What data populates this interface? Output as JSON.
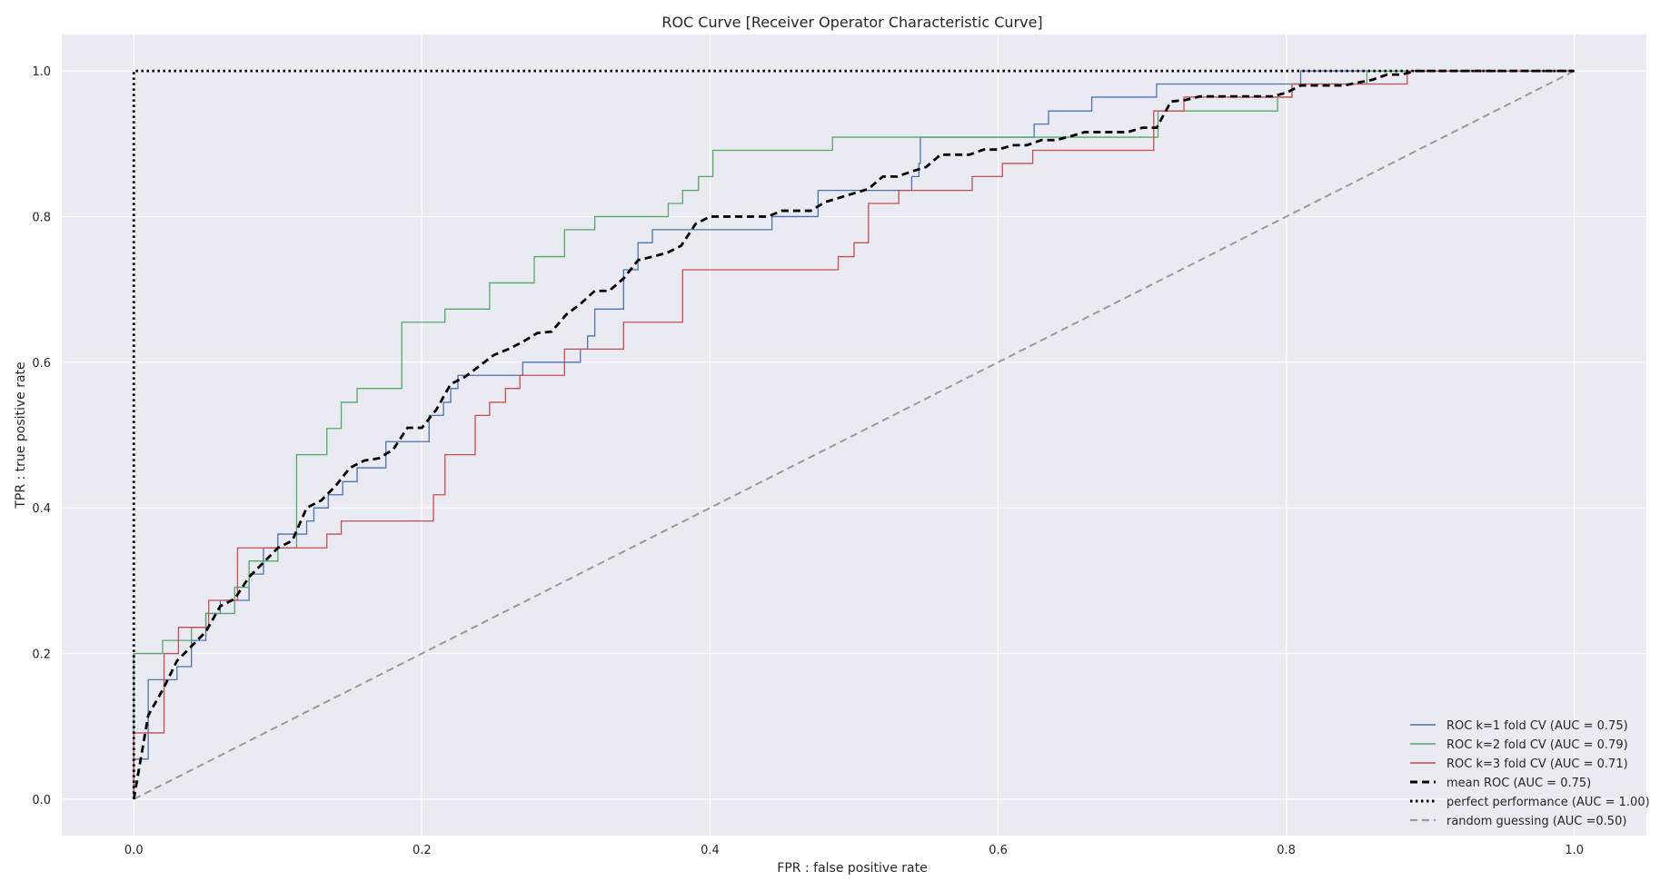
{
  "chart_data": {
    "type": "line",
    "title": "ROC Curve [Receiver Operator Characteristic Curve]",
    "xlabel": "FPR : false positive rate",
    "ylabel": "TPR : true positive rate",
    "xlim": [
      -0.05,
      1.05
    ],
    "ylim": [
      -0.05,
      1.05
    ],
    "xticks": [
      0.0,
      0.2,
      0.4,
      0.6,
      0.8,
      1.0
    ],
    "yticks": [
      0.0,
      0.2,
      0.4,
      0.6,
      0.8,
      1.0
    ],
    "xtick_labels": [
      "0.0",
      "0.2",
      "0.4",
      "0.6",
      "0.8",
      "1.0"
    ],
    "ytick_labels": [
      "0.0",
      "0.2",
      "0.4",
      "0.6",
      "0.8",
      "1.0"
    ],
    "grid": true,
    "legend_position": "lower-right",
    "colors": {
      "background": "#EAEAF2",
      "grid": "#FFFFFF",
      "fold1": "#4C72B0",
      "fold2": "#55A868",
      "fold3": "#C44E52",
      "mean": "#000000",
      "perfect": "#000000",
      "random": "#999999"
    },
    "series": [
      {
        "name": "ROC k=1 fold CV (AUC = 0.75)",
        "color": "#4C72B0",
        "style": "solid",
        "step": true,
        "points": [
          [
            0.0,
            0.0
          ],
          [
            0.0,
            0.055
          ],
          [
            0.01,
            0.055
          ],
          [
            0.01,
            0.164
          ],
          [
            0.03,
            0.164
          ],
          [
            0.03,
            0.182
          ],
          [
            0.04,
            0.182
          ],
          [
            0.04,
            0.218
          ],
          [
            0.05,
            0.218
          ],
          [
            0.05,
            0.255
          ],
          [
            0.06,
            0.255
          ],
          [
            0.06,
            0.273
          ],
          [
            0.08,
            0.273
          ],
          [
            0.08,
            0.309
          ],
          [
            0.09,
            0.309
          ],
          [
            0.09,
            0.345
          ],
          [
            0.1,
            0.345
          ],
          [
            0.1,
            0.364
          ],
          [
            0.12,
            0.364
          ],
          [
            0.12,
            0.382
          ],
          [
            0.125,
            0.382
          ],
          [
            0.125,
            0.4
          ],
          [
            0.135,
            0.4
          ],
          [
            0.135,
            0.418
          ],
          [
            0.145,
            0.418
          ],
          [
            0.145,
            0.436
          ],
          [
            0.155,
            0.436
          ],
          [
            0.155,
            0.455
          ],
          [
            0.175,
            0.455
          ],
          [
            0.175,
            0.491
          ],
          [
            0.205,
            0.491
          ],
          [
            0.205,
            0.527
          ],
          [
            0.215,
            0.527
          ],
          [
            0.215,
            0.545
          ],
          [
            0.22,
            0.545
          ],
          [
            0.22,
            0.564
          ],
          [
            0.225,
            0.564
          ],
          [
            0.225,
            0.582
          ],
          [
            0.27,
            0.582
          ],
          [
            0.27,
            0.6
          ],
          [
            0.31,
            0.6
          ],
          [
            0.31,
            0.618
          ],
          [
            0.315,
            0.618
          ],
          [
            0.315,
            0.636
          ],
          [
            0.32,
            0.636
          ],
          [
            0.32,
            0.673
          ],
          [
            0.34,
            0.673
          ],
          [
            0.34,
            0.727
          ],
          [
            0.35,
            0.727
          ],
          [
            0.35,
            0.764
          ],
          [
            0.36,
            0.764
          ],
          [
            0.36,
            0.782
          ],
          [
            0.443,
            0.782
          ],
          [
            0.443,
            0.8
          ],
          [
            0.475,
            0.8
          ],
          [
            0.475,
            0.836
          ],
          [
            0.54,
            0.836
          ],
          [
            0.54,
            0.855
          ],
          [
            0.545,
            0.855
          ],
          [
            0.545,
            0.873
          ],
          [
            0.546,
            0.873
          ],
          [
            0.546,
            0.909
          ],
          [
            0.625,
            0.909
          ],
          [
            0.625,
            0.927
          ],
          [
            0.635,
            0.927
          ],
          [
            0.635,
            0.945
          ],
          [
            0.665,
            0.945
          ],
          [
            0.665,
            0.964
          ],
          [
            0.71,
            0.964
          ],
          [
            0.71,
            0.982
          ],
          [
            0.81,
            0.982
          ],
          [
            0.81,
            1.0
          ],
          [
            1.0,
            1.0
          ]
        ]
      },
      {
        "name": "ROC k=2 fold CV (AUC = 0.79)",
        "color": "#55A868",
        "style": "solid",
        "step": true,
        "points": [
          [
            0.0,
            0.0
          ],
          [
            0.0,
            0.2
          ],
          [
            0.02,
            0.2
          ],
          [
            0.02,
            0.218
          ],
          [
            0.04,
            0.218
          ],
          [
            0.04,
            0.236
          ],
          [
            0.05,
            0.236
          ],
          [
            0.05,
            0.255
          ],
          [
            0.07,
            0.255
          ],
          [
            0.07,
            0.291
          ],
          [
            0.08,
            0.291
          ],
          [
            0.08,
            0.327
          ],
          [
            0.1,
            0.327
          ],
          [
            0.1,
            0.345
          ],
          [
            0.113,
            0.345
          ],
          [
            0.113,
            0.473
          ],
          [
            0.134,
            0.473
          ],
          [
            0.134,
            0.509
          ],
          [
            0.144,
            0.509
          ],
          [
            0.144,
            0.545
          ],
          [
            0.155,
            0.545
          ],
          [
            0.155,
            0.564
          ],
          [
            0.186,
            0.564
          ],
          [
            0.186,
            0.655
          ],
          [
            0.216,
            0.655
          ],
          [
            0.216,
            0.673
          ],
          [
            0.247,
            0.673
          ],
          [
            0.247,
            0.709
          ],
          [
            0.278,
            0.709
          ],
          [
            0.278,
            0.745
          ],
          [
            0.299,
            0.745
          ],
          [
            0.299,
            0.782
          ],
          [
            0.32,
            0.782
          ],
          [
            0.32,
            0.8
          ],
          [
            0.371,
            0.8
          ],
          [
            0.371,
            0.818
          ],
          [
            0.381,
            0.818
          ],
          [
            0.381,
            0.836
          ],
          [
            0.392,
            0.836
          ],
          [
            0.392,
            0.855
          ],
          [
            0.402,
            0.855
          ],
          [
            0.402,
            0.891
          ],
          [
            0.485,
            0.891
          ],
          [
            0.485,
            0.909
          ],
          [
            0.711,
            0.909
          ],
          [
            0.711,
            0.945
          ],
          [
            0.794,
            0.945
          ],
          [
            0.794,
            0.964
          ],
          [
            0.804,
            0.964
          ],
          [
            0.804,
            0.982
          ],
          [
            0.856,
            0.982
          ],
          [
            0.856,
            1.0
          ],
          [
            1.0,
            1.0
          ]
        ]
      },
      {
        "name": "ROC k=3 fold CV (AUC = 0.71)",
        "color": "#C44E52",
        "style": "solid",
        "step": true,
        "points": [
          [
            0.0,
            0.0
          ],
          [
            0.0,
            0.091
          ],
          [
            0.021,
            0.091
          ],
          [
            0.021,
            0.2
          ],
          [
            0.031,
            0.2
          ],
          [
            0.031,
            0.236
          ],
          [
            0.052,
            0.236
          ],
          [
            0.052,
            0.273
          ],
          [
            0.072,
            0.273
          ],
          [
            0.072,
            0.345
          ],
          [
            0.134,
            0.345
          ],
          [
            0.134,
            0.364
          ],
          [
            0.144,
            0.364
          ],
          [
            0.144,
            0.382
          ],
          [
            0.208,
            0.382
          ],
          [
            0.208,
            0.418
          ],
          [
            0.216,
            0.418
          ],
          [
            0.216,
            0.473
          ],
          [
            0.237,
            0.473
          ],
          [
            0.237,
            0.527
          ],
          [
            0.247,
            0.527
          ],
          [
            0.247,
            0.545
          ],
          [
            0.258,
            0.545
          ],
          [
            0.258,
            0.564
          ],
          [
            0.268,
            0.564
          ],
          [
            0.268,
            0.582
          ],
          [
            0.299,
            0.582
          ],
          [
            0.299,
            0.618
          ],
          [
            0.34,
            0.618
          ],
          [
            0.34,
            0.655
          ],
          [
            0.381,
            0.655
          ],
          [
            0.381,
            0.727
          ],
          [
            0.489,
            0.727
          ],
          [
            0.489,
            0.745
          ],
          [
            0.5,
            0.745
          ],
          [
            0.5,
            0.764
          ],
          [
            0.51,
            0.764
          ],
          [
            0.51,
            0.818
          ],
          [
            0.531,
            0.818
          ],
          [
            0.531,
            0.836
          ],
          [
            0.582,
            0.836
          ],
          [
            0.582,
            0.855
          ],
          [
            0.603,
            0.855
          ],
          [
            0.603,
            0.873
          ],
          [
            0.624,
            0.873
          ],
          [
            0.624,
            0.891
          ],
          [
            0.708,
            0.891
          ],
          [
            0.708,
            0.945
          ],
          [
            0.729,
            0.945
          ],
          [
            0.729,
            0.964
          ],
          [
            0.804,
            0.964
          ],
          [
            0.804,
            0.982
          ],
          [
            0.884,
            0.982
          ],
          [
            0.884,
            1.0
          ],
          [
            1.0,
            1.0
          ]
        ]
      },
      {
        "name": "mean ROC (AUC = 0.75)",
        "color": "#000000",
        "style": "dashed",
        "step": false,
        "points": [
          [
            0.0,
            0.0
          ],
          [
            0.01,
            0.115
          ],
          [
            0.02,
            0.15
          ],
          [
            0.03,
            0.19
          ],
          [
            0.04,
            0.21
          ],
          [
            0.05,
            0.23
          ],
          [
            0.06,
            0.265
          ],
          [
            0.07,
            0.275
          ],
          [
            0.08,
            0.305
          ],
          [
            0.09,
            0.325
          ],
          [
            0.1,
            0.345
          ],
          [
            0.11,
            0.355
          ],
          [
            0.12,
            0.4
          ],
          [
            0.13,
            0.41
          ],
          [
            0.14,
            0.43
          ],
          [
            0.15,
            0.455
          ],
          [
            0.16,
            0.465
          ],
          [
            0.17,
            0.468
          ],
          [
            0.18,
            0.48
          ],
          [
            0.19,
            0.51
          ],
          [
            0.2,
            0.51
          ],
          [
            0.21,
            0.535
          ],
          [
            0.22,
            0.57
          ],
          [
            0.23,
            0.58
          ],
          [
            0.24,
            0.595
          ],
          [
            0.25,
            0.61
          ],
          [
            0.26,
            0.618
          ],
          [
            0.27,
            0.628
          ],
          [
            0.28,
            0.64
          ],
          [
            0.29,
            0.642
          ],
          [
            0.3,
            0.665
          ],
          [
            0.31,
            0.68
          ],
          [
            0.32,
            0.698
          ],
          [
            0.33,
            0.698
          ],
          [
            0.34,
            0.715
          ],
          [
            0.35,
            0.74
          ],
          [
            0.36,
            0.745
          ],
          [
            0.37,
            0.75
          ],
          [
            0.38,
            0.76
          ],
          [
            0.39,
            0.79
          ],
          [
            0.4,
            0.8
          ],
          [
            0.42,
            0.8
          ],
          [
            0.44,
            0.8
          ],
          [
            0.45,
            0.808
          ],
          [
            0.46,
            0.808
          ],
          [
            0.47,
            0.808
          ],
          [
            0.48,
            0.82
          ],
          [
            0.5,
            0.832
          ],
          [
            0.51,
            0.838
          ],
          [
            0.52,
            0.855
          ],
          [
            0.53,
            0.855
          ],
          [
            0.54,
            0.862
          ],
          [
            0.55,
            0.868
          ],
          [
            0.56,
            0.885
          ],
          [
            0.58,
            0.885
          ],
          [
            0.59,
            0.892
          ],
          [
            0.6,
            0.892
          ],
          [
            0.61,
            0.898
          ],
          [
            0.62,
            0.898
          ],
          [
            0.63,
            0.905
          ],
          [
            0.64,
            0.905
          ],
          [
            0.65,
            0.91
          ],
          [
            0.66,
            0.916
          ],
          [
            0.69,
            0.916
          ],
          [
            0.7,
            0.922
          ],
          [
            0.71,
            0.922
          ],
          [
            0.72,
            0.958
          ],
          [
            0.73,
            0.96
          ],
          [
            0.74,
            0.965
          ],
          [
            0.79,
            0.965
          ],
          [
            0.8,
            0.97
          ],
          [
            0.81,
            0.98
          ],
          [
            0.84,
            0.98
          ],
          [
            0.86,
            0.988
          ],
          [
            0.87,
            0.995
          ],
          [
            0.88,
            0.995
          ],
          [
            0.89,
            1.0
          ],
          [
            1.0,
            1.0
          ]
        ]
      },
      {
        "name": "perfect performance (AUC = 1.00)",
        "color": "#000000",
        "style": "dotted",
        "step": false,
        "points": [
          [
            0.0,
            0.0
          ],
          [
            0.0,
            1.0
          ],
          [
            1.0,
            1.0
          ]
        ]
      },
      {
        "name": "random guessing (AUC =0.50)",
        "color": "#999999",
        "style": "dashed",
        "step": false,
        "points": [
          [
            0.0,
            0.0
          ],
          [
            1.0,
            1.0
          ]
        ]
      }
    ]
  }
}
